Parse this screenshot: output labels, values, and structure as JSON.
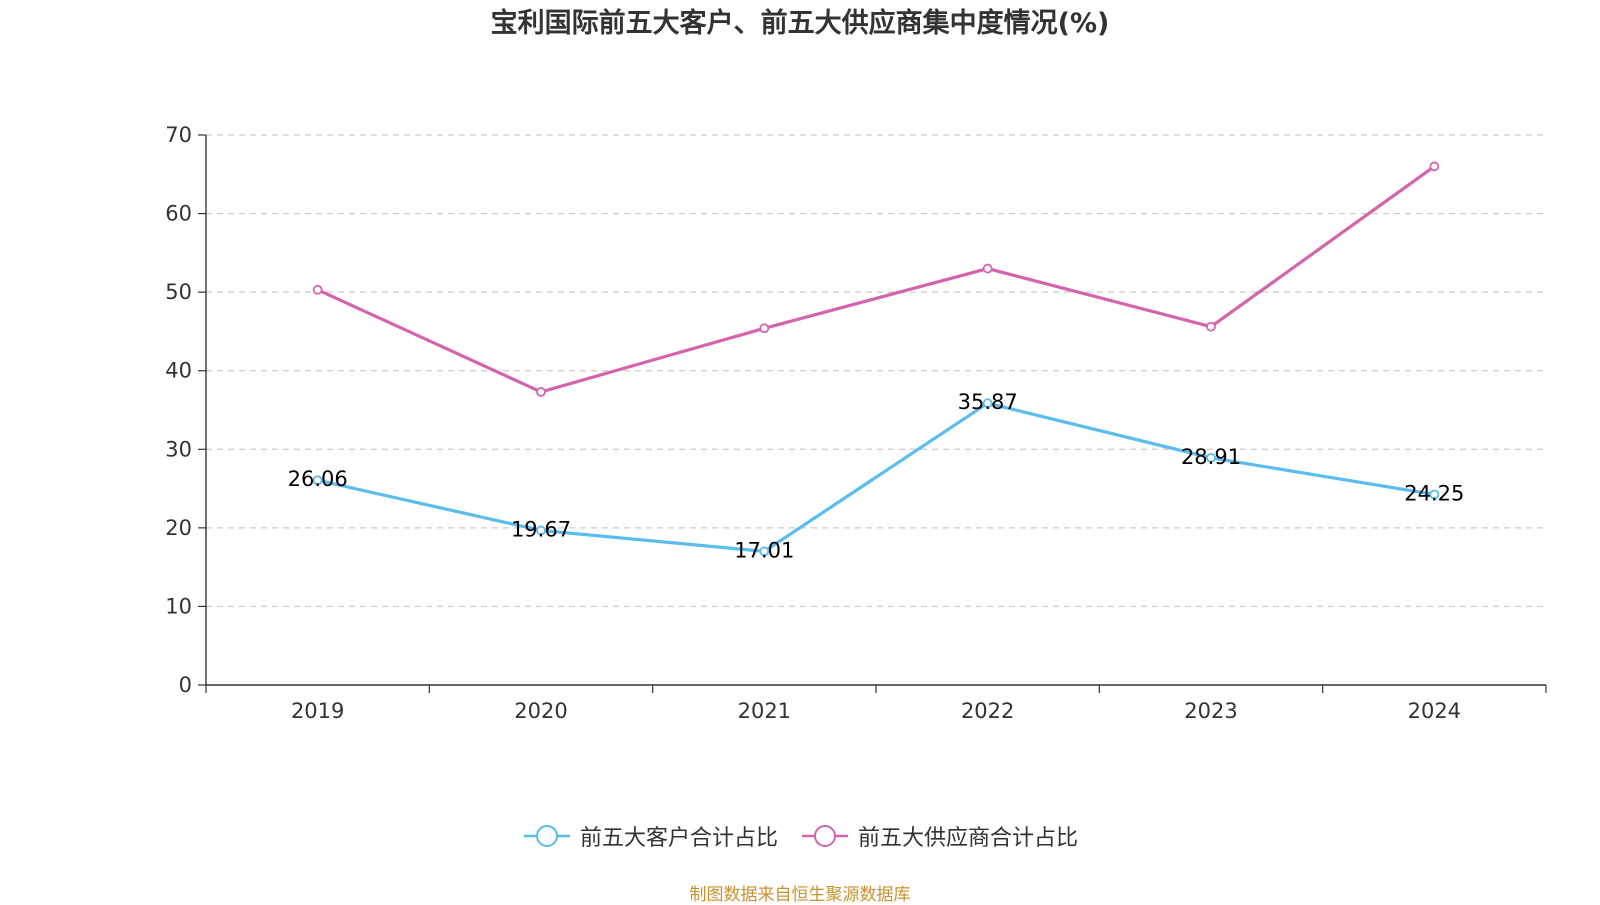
{
  "chart_data": {
    "type": "line",
    "title": "宝利国际前五大客户、前五大供应商集中度情况(%)",
    "xlabel": "",
    "ylabel": "",
    "categories": [
      "2019",
      "2020",
      "2021",
      "2022",
      "2023",
      "2024"
    ],
    "ylim": [
      0,
      70
    ],
    "yticks": [
      0,
      10,
      20,
      30,
      40,
      50,
      60,
      70
    ],
    "grid": true,
    "legend_position": "bottom",
    "series": [
      {
        "name": "前五大客户合计占比",
        "color": "#5bbcee",
        "values": [
          26.06,
          19.67,
          17.01,
          35.87,
          28.91,
          24.25
        ],
        "labels": [
          "26.06",
          "19.67",
          "17.01",
          "35.87",
          "28.91",
          "24.25"
        ],
        "show_labels": true
      },
      {
        "name": "前五大供应商合计占比",
        "color": "#d464ac",
        "values": [
          50.3,
          37.3,
          45.4,
          53.0,
          45.6,
          66.0
        ],
        "show_labels": false
      }
    ]
  },
  "source_note": "制图数据来自恒生聚源数据库"
}
